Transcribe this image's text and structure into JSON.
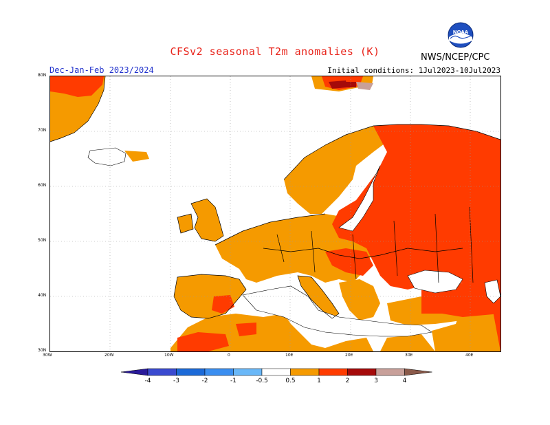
{
  "header": {
    "title": "CFSv2 seasonal T2m anomalies (K)",
    "season": "Dec-Jan-Feb 2023/2024",
    "initial_conditions": "Initial conditions: 1Jul2023-10Jul2023",
    "agency": "NWS/NCEP/CPC",
    "logo_text": "NOAA"
  },
  "colors": {
    "title": "#e8231a",
    "season": "#2233cc",
    "anom_05_1": "#f59a00",
    "anom_1_2": "#ff3b00",
    "anom_2_3": "#a50a0a",
    "anom_3_4": "#c8a09a",
    "border": "#000000",
    "grid": "#999999"
  },
  "map": {
    "lon_range": [
      -30,
      45
    ],
    "lat_range": [
      30,
      80
    ],
    "lon_ticks": [
      "30W",
      "20W",
      "10W",
      "0",
      "10E",
      "20E",
      "30E",
      "40E"
    ],
    "lat_ticks": [
      "30N",
      "40N",
      "50N",
      "60N",
      "70N",
      "80N"
    ]
  },
  "legend": {
    "labels": [
      "-4",
      "-3",
      "-2",
      "-1",
      "-0.5",
      "0.5",
      "1",
      "2",
      "3",
      "4"
    ],
    "colors": [
      "#2a1a9a",
      "#3a4ad0",
      "#1c6ad8",
      "#3a8ef0",
      "#6ab8f8",
      "#ffffff",
      "#f59a00",
      "#ff3b00",
      "#a50a0a",
      "#c8a09a",
      "#8a5a4a"
    ]
  }
}
